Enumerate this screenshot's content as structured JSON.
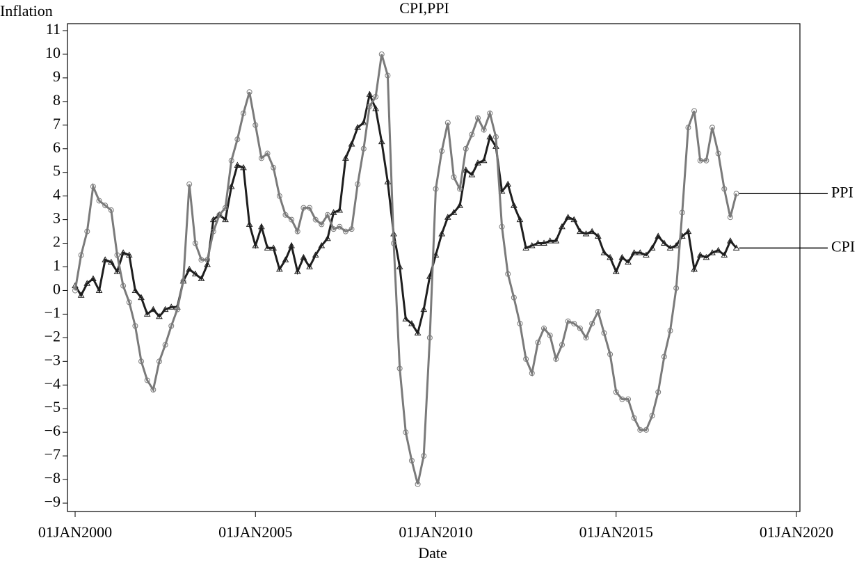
{
  "chart_data": {
    "type": "line",
    "title": "CPI,PPI",
    "y_label": "Inflation",
    "x_label": "Date",
    "x": [
      "2000-01",
      "2000-03",
      "2000-05",
      "2000-07",
      "2000-09",
      "2000-11",
      "2001-01",
      "2001-03",
      "2001-05",
      "2001-07",
      "2001-09",
      "2001-11",
      "2002-01",
      "2002-03",
      "2002-05",
      "2002-07",
      "2002-09",
      "2002-11",
      "2003-01",
      "2003-03",
      "2003-05",
      "2003-07",
      "2003-09",
      "2003-11",
      "2004-01",
      "2004-03",
      "2004-05",
      "2004-07",
      "2004-09",
      "2004-11",
      "2005-01",
      "2005-03",
      "2005-05",
      "2005-07",
      "2005-09",
      "2005-11",
      "2006-01",
      "2006-03",
      "2006-05",
      "2006-07",
      "2006-09",
      "2006-11",
      "2007-01",
      "2007-03",
      "2007-05",
      "2007-07",
      "2007-09",
      "2007-11",
      "2008-01",
      "2008-03",
      "2008-05",
      "2008-07",
      "2008-09",
      "2008-11",
      "2009-01",
      "2009-03",
      "2009-05",
      "2009-07",
      "2009-09",
      "2009-11",
      "2010-01",
      "2010-03",
      "2010-05",
      "2010-07",
      "2010-09",
      "2010-11",
      "2011-01",
      "2011-03",
      "2011-05",
      "2011-07",
      "2011-09",
      "2011-11",
      "2012-01",
      "2012-03",
      "2012-05",
      "2012-07",
      "2012-09",
      "2012-11",
      "2013-01",
      "2013-03",
      "2013-05",
      "2013-07",
      "2013-09",
      "2013-11",
      "2014-01",
      "2014-03",
      "2014-05",
      "2014-07",
      "2014-09",
      "2014-11",
      "2015-01",
      "2015-03",
      "2015-05",
      "2015-07",
      "2015-09",
      "2015-11",
      "2016-01",
      "2016-03",
      "2016-05",
      "2016-07",
      "2016-09",
      "2016-11",
      "2017-01",
      "2017-03",
      "2017-05",
      "2017-07",
      "2017-09",
      "2017-11",
      "2018-01",
      "2018-03",
      "2018-05"
    ],
    "series": [
      {
        "name": "CPI",
        "color": "#1e1e1e",
        "marker": "triangle",
        "values": [
          0.2,
          -0.2,
          0.3,
          0.5,
          0.0,
          1.3,
          1.2,
          0.8,
          1.6,
          1.5,
          0.0,
          -0.3,
          -1.0,
          -0.8,
          -1.1,
          -0.8,
          -0.7,
          -0.7,
          0.4,
          0.9,
          0.7,
          0.5,
          1.1,
          3.0,
          3.2,
          3.0,
          4.4,
          5.3,
          5.2,
          2.8,
          1.9,
          2.7,
          1.8,
          1.8,
          0.9,
          1.3,
          1.9,
          0.8,
          1.4,
          1.0,
          1.5,
          1.9,
          2.2,
          3.3,
          3.4,
          5.6,
          6.2,
          6.9,
          7.1,
          8.3,
          7.7,
          6.3,
          4.6,
          2.4,
          1.0,
          -1.2,
          -1.4,
          -1.8,
          -0.8,
          0.6,
          1.5,
          2.4,
          3.1,
          3.3,
          3.6,
          5.1,
          4.9,
          5.4,
          5.5,
          6.5,
          6.1,
          4.2,
          4.5,
          3.6,
          3.0,
          1.8,
          1.9,
          2.0,
          2.0,
          2.1,
          2.1,
          2.7,
          3.1,
          3.0,
          2.5,
          2.4,
          2.5,
          2.3,
          1.6,
          1.4,
          0.8,
          1.4,
          1.2,
          1.6,
          1.6,
          1.5,
          1.8,
          2.3,
          2.0,
          1.8,
          1.9,
          2.3,
          2.5,
          0.9,
          1.5,
          1.4,
          1.6,
          1.7,
          1.5,
          2.1,
          1.8
        ]
      },
      {
        "name": "PPI",
        "color": "#7a7a7a",
        "marker": "circle",
        "values": [
          0.0,
          1.5,
          2.5,
          4.4,
          3.8,
          3.6,
          3.4,
          1.5,
          0.2,
          -0.5,
          -1.5,
          -3.0,
          -3.8,
          -4.2,
          -3.0,
          -2.3,
          -1.5,
          -0.8,
          0.4,
          4.5,
          2.0,
          1.3,
          1.3,
          2.5,
          3.2,
          3.5,
          5.5,
          6.4,
          7.5,
          8.4,
          7.0,
          5.6,
          5.8,
          5.2,
          4.0,
          3.2,
          3.0,
          2.5,
          3.5,
          3.5,
          3.0,
          2.8,
          3.2,
          2.6,
          2.7,
          2.5,
          2.6,
          4.5,
          6.0,
          7.8,
          8.2,
          10.0,
          9.1,
          2.0,
          -3.3,
          -6.0,
          -7.2,
          -8.2,
          -7.0,
          -2.0,
          4.3,
          5.9,
          7.1,
          4.8,
          4.3,
          6.0,
          6.6,
          7.3,
          6.8,
          7.5,
          6.5,
          2.7,
          0.7,
          -0.3,
          -1.4,
          -2.9,
          -3.5,
          -2.2,
          -1.6,
          -1.9,
          -2.9,
          -2.3,
          -1.3,
          -1.4,
          -1.6,
          -2.0,
          -1.4,
          -0.9,
          -1.8,
          -2.7,
          -4.3,
          -4.6,
          -4.6,
          -5.4,
          -5.9,
          -5.9,
          -5.3,
          -4.3,
          -2.8,
          -1.7,
          0.1,
          3.3,
          6.9,
          7.6,
          5.5,
          5.5,
          6.9,
          5.8,
          4.3,
          3.1,
          4.1
        ]
      }
    ],
    "xlim": [
      "2000-01",
      "2020-01"
    ],
    "xticks": [
      {
        "value": "2000-01",
        "label": "01JAN2000"
      },
      {
        "value": "2005-01",
        "label": "01JAN2005"
      },
      {
        "value": "2010-01",
        "label": "01JAN2010"
      },
      {
        "value": "2015-01",
        "label": "01JAN2015"
      },
      {
        "value": "2020-01",
        "label": "01JAN2020"
      }
    ],
    "ylim": [
      -9,
      11
    ],
    "yticks": [
      {
        "value": -9,
        "label": "−9"
      },
      {
        "value": -8,
        "label": "−8"
      },
      {
        "value": -7,
        "label": "−7"
      },
      {
        "value": -6,
        "label": "−6"
      },
      {
        "value": -5,
        "label": "−5"
      },
      {
        "value": -4,
        "label": "−4"
      },
      {
        "value": -3,
        "label": "−3"
      },
      {
        "value": -2,
        "label": "−2"
      },
      {
        "value": -1,
        "label": "−1"
      },
      0,
      1,
      2,
      3,
      4,
      5,
      6,
      7,
      8,
      9,
      10,
      11
    ],
    "grid": false,
    "legend": "end-of-line"
  }
}
